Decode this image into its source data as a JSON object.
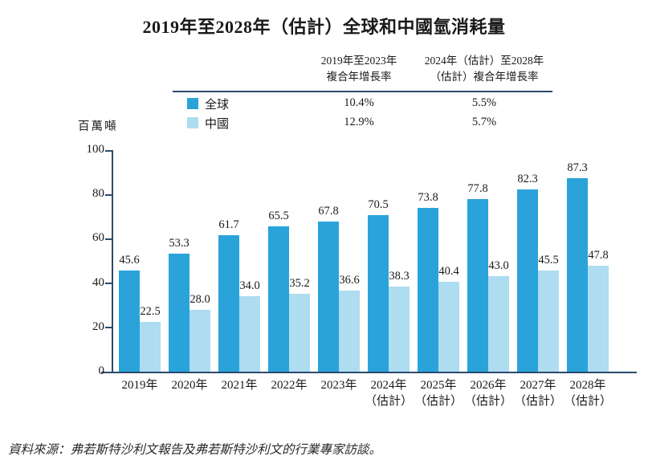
{
  "title": "2019年至2028年（估計）全球和中國氫消耗量",
  "colors": {
    "global_bar": "#29a3da",
    "china_bar": "#aedcf0",
    "axis": "#2b4a6f",
    "text": "#1a1a1a"
  },
  "summary_table": {
    "col1_header_line1": "2019年至2023年",
    "col1_header_line2": "複合年增長率",
    "col2_header_line1": "2024年（估計）至2028年",
    "col2_header_line2": "（估計）複合年增長率",
    "rows": [
      {
        "label": "全球",
        "cagr_2019_2023": "10.4%",
        "cagr_2024_2028": "5.5%"
      },
      {
        "label": "中國",
        "cagr_2019_2023": "12.9%",
        "cagr_2024_2028": "5.7%"
      }
    ]
  },
  "unit_label": "百萬噸",
  "chart_data": {
    "type": "bar",
    "title": "2019年至2028年（估計）全球和中國氫消耗量",
    "ylabel": "百萬噸",
    "xlabel": "",
    "ylim": [
      0,
      100
    ],
    "yticks": [
      0,
      20,
      40,
      60,
      80,
      100
    ],
    "grid": false,
    "legend_position": "top-left-table",
    "categories": [
      [
        "2019年"
      ],
      [
        "2020年"
      ],
      [
        "2021年"
      ],
      [
        "2022年"
      ],
      [
        "2023年"
      ],
      [
        "2024年",
        "（估計）"
      ],
      [
        "2025年",
        "（估計）"
      ],
      [
        "2026年",
        "（估計）"
      ],
      [
        "2027年",
        "（估計）"
      ],
      [
        "2028年",
        "（估計）"
      ]
    ],
    "series": [
      {
        "name": "全球",
        "key": "global",
        "color": "#29a3da",
        "values": [
          45.6,
          53.3,
          61.7,
          65.5,
          67.8,
          70.5,
          73.8,
          77.8,
          82.3,
          87.3
        ]
      },
      {
        "name": "中國",
        "key": "china",
        "color": "#aedcf0",
        "values": [
          22.5,
          28.0,
          34.0,
          35.2,
          36.6,
          38.3,
          40.4,
          43.0,
          45.5,
          47.8
        ]
      }
    ]
  },
  "source_note": "資料來源：弗若斯特沙利文報告及弗若斯特沙利文的行業專家訪談。"
}
